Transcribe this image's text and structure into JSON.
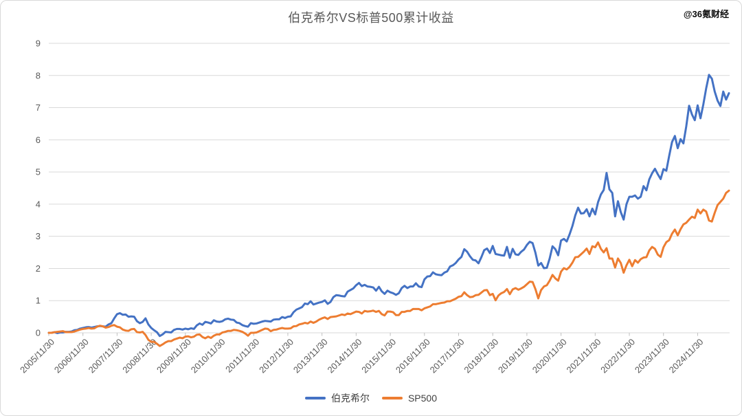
{
  "page": {
    "watermark": "@36氪财经"
  },
  "colors": {
    "berkshire_line": "#4472C4",
    "sp500_line": "#ED7D31",
    "gridline": "#d9d9d9",
    "tick": "#bfbfbf",
    "axis_label": "#595959",
    "title_text": "#595959",
    "legend_text": "#404040",
    "background": "#ffffff"
  },
  "chart_data": {
    "type": "line",
    "title": "伯克希尔VS标普500累计收益",
    "xlabel": "",
    "ylabel": "",
    "ylim": [
      0,
      9
    ],
    "y_ticks": [
      0,
      1,
      2,
      3,
      4,
      5,
      6,
      7,
      8,
      9
    ],
    "grid": "horizontal",
    "legend_position": "bottom",
    "x_tick_labels": [
      "2005/11/30",
      "2006/11/30",
      "2007/11/30",
      "2008/11/30",
      "2009/11/30",
      "2010/11/30",
      "2011/11/30",
      "2012/11/30",
      "2013/11/30",
      "2014/11/30",
      "2015/11/30",
      "2016/11/30",
      "2017/11/30",
      "2018/11/30",
      "2019/11/30",
      "2020/11/30",
      "2021/11/30",
      "2022/11/30",
      "2023/11/30",
      "2024/11/30"
    ],
    "points_per_label_interval": 12,
    "series": [
      {
        "name": "伯克希尔",
        "color": "#4472C4",
        "values": [
          0.0,
          0.0,
          0.02,
          -0.01,
          0.01,
          0.01,
          0.03,
          0.03,
          0.04,
          0.08,
          0.09,
          0.13,
          0.15,
          0.17,
          0.18,
          0.16,
          0.18,
          0.2,
          0.21,
          0.2,
          0.19,
          0.26,
          0.3,
          0.45,
          0.58,
          0.61,
          0.56,
          0.57,
          0.5,
          0.51,
          0.5,
          0.36,
          0.3,
          0.34,
          0.45,
          0.26,
          0.15,
          0.08,
          0.02,
          -0.1,
          -0.05,
          0.03,
          0.02,
          0.01,
          0.09,
          0.12,
          0.12,
          0.1,
          0.13,
          0.11,
          0.14,
          0.12,
          0.23,
          0.29,
          0.25,
          0.34,
          0.32,
          0.29,
          0.39,
          0.35,
          0.34,
          0.36,
          0.42,
          0.44,
          0.41,
          0.4,
          0.32,
          0.3,
          0.24,
          0.21,
          0.19,
          0.3,
          0.28,
          0.29,
          0.32,
          0.35,
          0.37,
          0.36,
          0.35,
          0.41,
          0.42,
          0.42,
          0.49,
          0.46,
          0.5,
          0.51,
          0.64,
          0.72,
          0.76,
          0.8,
          0.91,
          0.89,
          0.98,
          0.88,
          0.91,
          0.94,
          0.96,
          1.01,
          0.9,
          0.96,
          1.11,
          1.17,
          1.16,
          1.14,
          1.13,
          1.28,
          1.33,
          1.38,
          1.48,
          1.55,
          1.45,
          1.49,
          1.44,
          1.43,
          1.41,
          1.31,
          1.43,
          1.29,
          1.21,
          1.31,
          1.26,
          1.23,
          1.18,
          1.23,
          1.39,
          1.46,
          1.39,
          1.44,
          1.44,
          1.54,
          1.44,
          1.42,
          1.66,
          1.75,
          1.76,
          1.88,
          1.82,
          1.8,
          1.79,
          1.87,
          1.91,
          2.06,
          2.1,
          2.17,
          2.28,
          2.36,
          2.6,
          2.52,
          2.38,
          2.27,
          2.25,
          2.16,
          2.35,
          2.57,
          2.62,
          2.48,
          2.7,
          2.45,
          2.43,
          2.41,
          2.4,
          2.67,
          2.33,
          2.61,
          2.44,
          2.42,
          2.52,
          2.59,
          2.73,
          2.83,
          2.79,
          2.49,
          2.09,
          2.17,
          2.01,
          2.02,
          2.31,
          2.69,
          2.6,
          2.41,
          2.87,
          2.92,
          2.84,
          3.06,
          3.32,
          3.65,
          3.89,
          3.71,
          3.72,
          3.84,
          3.62,
          3.86,
          3.68,
          4.06,
          4.3,
          4.44,
          4.97,
          4.46,
          4.35,
          3.62,
          4.09,
          3.75,
          3.52,
          4.0,
          4.23,
          4.23,
          4.27,
          4.17,
          4.23,
          4.56,
          4.43,
          4.77,
          4.96,
          5.1,
          4.93,
          4.78,
          5.09,
          5.04,
          5.5,
          5.93,
          6.12,
          5.74,
          6.02,
          5.89,
          6.42,
          7.06,
          6.79,
          6.61,
          7.07,
          6.67,
          7.1,
          7.6,
          8.02,
          7.9,
          7.5,
          7.22,
          7.05,
          7.5,
          7.25,
          7.45
        ]
      },
      {
        "name": "SP500",
        "color": "#ED7D31",
        "values": [
          0.0,
          0.0,
          0.02,
          0.03,
          0.04,
          0.05,
          0.02,
          0.02,
          0.02,
          0.04,
          0.07,
          0.1,
          0.12,
          0.13,
          0.15,
          0.13,
          0.14,
          0.19,
          0.22,
          0.2,
          0.16,
          0.18,
          0.22,
          0.24,
          0.19,
          0.17,
          0.1,
          0.07,
          0.06,
          0.11,
          0.12,
          0.02,
          0.01,
          0.03,
          -0.07,
          -0.22,
          -0.28,
          -0.28,
          -0.34,
          -0.41,
          -0.36,
          -0.3,
          -0.26,
          -0.26,
          -0.21,
          -0.18,
          -0.15,
          -0.17,
          -0.12,
          -0.11,
          -0.14,
          -0.12,
          -0.06,
          -0.05,
          -0.13,
          -0.17,
          -0.12,
          -0.16,
          -0.09,
          -0.05,
          -0.05,
          0.01,
          0.03,
          0.06,
          0.06,
          0.09,
          0.08,
          0.06,
          0.03,
          -0.02,
          -0.09,
          0.0,
          0.0,
          0.01,
          0.05,
          0.09,
          0.13,
          0.12,
          0.05,
          0.09,
          0.1,
          0.13,
          0.15,
          0.13,
          0.13,
          0.14,
          0.2,
          0.21,
          0.26,
          0.28,
          0.31,
          0.29,
          0.35,
          0.31,
          0.35,
          0.41,
          0.45,
          0.48,
          0.43,
          0.49,
          0.5,
          0.51,
          0.54,
          0.57,
          0.55,
          0.6,
          0.58,
          0.62,
          0.66,
          0.65,
          0.6,
          0.68,
          0.66,
          0.67,
          0.69,
          0.65,
          0.68,
          0.58,
          0.54,
          0.66,
          0.66,
          0.64,
          0.55,
          0.55,
          0.65,
          0.65,
          0.68,
          0.68,
          0.74,
          0.74,
          0.74,
          0.7,
          0.76,
          0.79,
          0.82,
          0.89,
          0.89,
          0.91,
          0.93,
          0.94,
          0.98,
          0.98,
          1.02,
          1.06,
          1.12,
          1.14,
          1.26,
          1.17,
          1.11,
          1.12,
          1.17,
          1.18,
          1.25,
          1.32,
          1.33,
          1.17,
          1.21,
          1.01,
          1.16,
          1.23,
          1.27,
          1.36,
          1.2,
          1.35,
          1.39,
          1.34,
          1.38,
          1.43,
          1.51,
          1.59,
          1.58,
          1.36,
          1.07,
          1.33,
          1.44,
          1.48,
          1.62,
          1.8,
          1.69,
          1.62,
          1.9,
          2.01,
          1.97,
          2.05,
          2.18,
          2.35,
          2.36,
          2.44,
          2.52,
          2.62,
          2.45,
          2.69,
          2.66,
          2.81,
          2.61,
          2.5,
          2.63,
          2.31,
          2.31,
          2.03,
          2.31,
          2.17,
          1.87,
          2.1,
          2.27,
          2.07,
          2.26,
          2.18,
          2.29,
          2.34,
          2.35,
          2.56,
          2.67,
          2.61,
          2.43,
          2.36,
          2.66,
          2.82,
          2.88,
          3.08,
          3.21,
          3.03,
          3.22,
          3.37,
          3.42,
          3.52,
          3.61,
          3.57,
          3.83,
          3.71,
          3.83,
          3.77,
          3.49,
          3.46,
          3.73,
          3.97,
          4.07,
          4.17,
          4.35,
          4.42
        ]
      }
    ]
  }
}
